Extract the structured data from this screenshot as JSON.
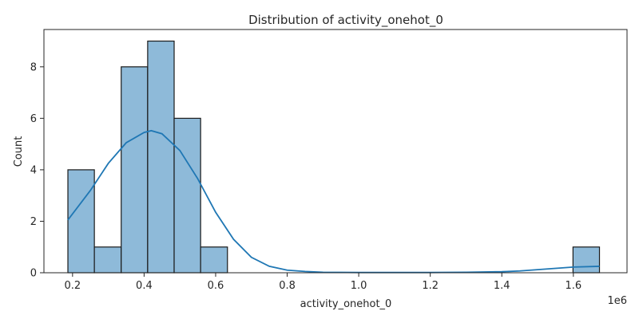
{
  "chart_data": {
    "type": "bar",
    "title": "Distribution of activity_onehot_0",
    "xlabel": "activity_onehot_0",
    "ylabel": "Count",
    "x_scale_label": "1e6",
    "x_ticks": [
      "0.2",
      "0.4",
      "0.6",
      "0.8",
      "1.0",
      "1.2",
      "1.4",
      "1.6"
    ],
    "x_tick_values": [
      0.2,
      0.4,
      0.6,
      0.8,
      1.0,
      1.2,
      1.4,
      1.6
    ],
    "y_ticks": [
      "0",
      "2",
      "4",
      "6",
      "8"
    ],
    "y_tick_values": [
      0,
      2,
      4,
      6,
      8
    ],
    "xlim": [
      0.12,
      1.75
    ],
    "ylim": [
      0,
      9.45
    ],
    "bins": [
      {
        "start": 0.187,
        "end": 0.261,
        "count": 4
      },
      {
        "start": 0.261,
        "end": 0.336,
        "count": 1
      },
      {
        "start": 0.336,
        "end": 0.41,
        "count": 8
      },
      {
        "start": 0.41,
        "end": 0.484,
        "count": 9
      },
      {
        "start": 0.484,
        "end": 0.558,
        "count": 6
      },
      {
        "start": 0.558,
        "end": 0.633,
        "count": 1
      },
      {
        "start": 0.633,
        "end": 0.707,
        "count": 0
      },
      {
        "start": 0.707,
        "end": 0.781,
        "count": 0
      },
      {
        "start": 0.781,
        "end": 0.856,
        "count": 0
      },
      {
        "start": 0.856,
        "end": 0.93,
        "count": 0
      },
      {
        "start": 0.93,
        "end": 1.004,
        "count": 0
      },
      {
        "start": 1.004,
        "end": 1.079,
        "count": 0
      },
      {
        "start": 1.079,
        "end": 1.153,
        "count": 0
      },
      {
        "start": 1.153,
        "end": 1.227,
        "count": 0
      },
      {
        "start": 1.227,
        "end": 1.301,
        "count": 0
      },
      {
        "start": 1.301,
        "end": 1.376,
        "count": 0
      },
      {
        "start": 1.376,
        "end": 1.45,
        "count": 0
      },
      {
        "start": 1.45,
        "end": 1.524,
        "count": 0
      },
      {
        "start": 1.524,
        "end": 1.599,
        "count": 0
      },
      {
        "start": 1.599,
        "end": 1.673,
        "count": 1
      }
    ],
    "kde": {
      "x": [
        0.187,
        0.25,
        0.3,
        0.35,
        0.4,
        0.42,
        0.45,
        0.5,
        0.55,
        0.6,
        0.65,
        0.7,
        0.75,
        0.8,
        0.85,
        0.9,
        1.0,
        1.1,
        1.2,
        1.3,
        1.4,
        1.45,
        1.5,
        1.55,
        1.6,
        1.673
      ],
      "y": [
        2.05,
        3.2,
        4.25,
        5.05,
        5.45,
        5.52,
        5.4,
        4.75,
        3.65,
        2.35,
        1.3,
        0.6,
        0.25,
        0.1,
        0.05,
        0.02,
        0.01,
        0.01,
        0.01,
        0.02,
        0.04,
        0.07,
        0.12,
        0.17,
        0.22,
        0.25
      ]
    },
    "colors": {
      "bar_fill": "#8ebad9",
      "bar_edge": "#1a1a1a",
      "kde_line": "#1f77b4",
      "axis": "#262626"
    },
    "grid": false,
    "legend": "none"
  }
}
